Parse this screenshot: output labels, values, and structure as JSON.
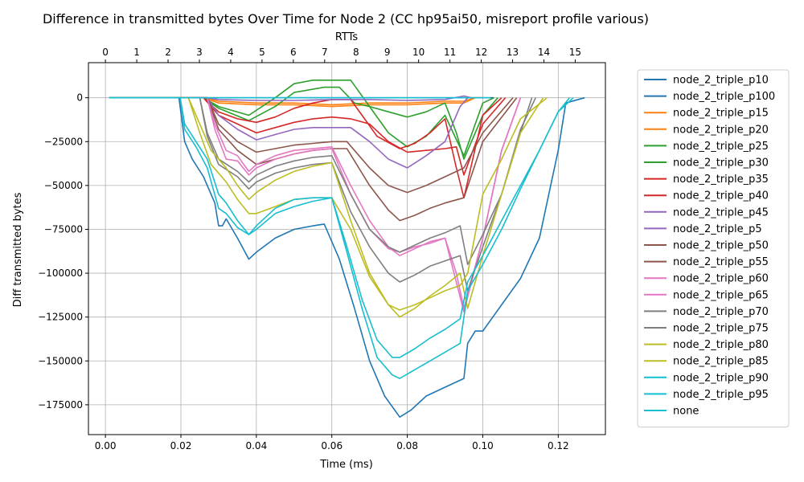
{
  "chart_data": {
    "type": "line",
    "title": "Difference in transmitted bytes Over Time for Node 2 (CC hp95ai50, misreport profile various)",
    "xlabel": "Time (ms)",
    "ylabel": "Diff transmitted bytes",
    "x2label": "RTTs",
    "xlim": [
      -0.0045,
      0.1325
    ],
    "ylim": [
      -192000,
      20000
    ],
    "xticks": [
      0.0,
      0.02,
      0.04,
      0.06,
      0.08,
      0.1,
      0.12
    ],
    "xtick_labels": [
      "0.00",
      "0.02",
      "0.04",
      "0.06",
      "0.08",
      "0.10",
      "0.12"
    ],
    "yticks": [
      0,
      -25000,
      -50000,
      -75000,
      -100000,
      -125000,
      -150000,
      -175000
    ],
    "ytick_labels": [
      "0",
      "−25000",
      "−50000",
      "−75000",
      "−100000",
      "−125000",
      "−150000",
      "−175000"
    ],
    "x2ticks": [
      0,
      1,
      2,
      3,
      4,
      5,
      6,
      7,
      8,
      9,
      10,
      11,
      12,
      13,
      14,
      15
    ],
    "x2tick_labels": [
      "0",
      "1",
      "2",
      "3",
      "4",
      "5",
      "6",
      "7",
      "8",
      "9",
      "10",
      "11",
      "12",
      "13",
      "14",
      "15"
    ],
    "rtt_per_ms": 0.0083,
    "grid": true,
    "legend_position": "outside-right",
    "series": [
      {
        "name": "node_2_triple_p10",
        "color": "#1f77b4",
        "x": [
          0.001,
          0.02,
          0.1,
          0.103
        ],
        "y": [
          0,
          0,
          0,
          0
        ]
      },
      {
        "name": "node_2_triple_p100",
        "color": "#1f77b4",
        "x": [
          0.001,
          0.0195,
          0.021,
          0.023,
          0.026,
          0.029,
          0.03,
          0.031,
          0.032,
          0.035,
          0.038,
          0.04,
          0.045,
          0.05,
          0.055,
          0.058,
          0.062,
          0.066,
          0.07,
          0.074,
          0.078,
          0.081,
          0.085,
          0.09,
          0.095,
          0.096,
          0.098,
          0.1,
          0.105,
          0.11,
          0.115,
          0.12,
          0.122,
          0.127
        ],
        "y": [
          0,
          0,
          -25000,
          -35000,
          -45000,
          -60000,
          -73000,
          -73000,
          -69000,
          -80000,
          -92000,
          -88000,
          -80000,
          -75000,
          -73000,
          -72000,
          -92000,
          -120000,
          -150000,
          -170000,
          -182000,
          -178000,
          -170000,
          -165000,
          -160000,
          -140000,
          -133000,
          -133000,
          -118000,
          -103000,
          -80000,
          -30000,
          -3000,
          0
        ]
      },
      {
        "name": "node_2_triple_p15",
        "color": "#ff7f0e",
        "x": [
          0.001,
          0.026,
          0.03,
          0.04,
          0.05,
          0.06,
          0.07,
          0.08,
          0.09,
          0.095,
          0.098,
          0.1
        ],
        "y": [
          0,
          0,
          -2000,
          -3000,
          -3000,
          -4000,
          -3000,
          -3000,
          -2000,
          -2000,
          0,
          0
        ]
      },
      {
        "name": "node_2_triple_p20",
        "color": "#ff7f0e",
        "x": [
          0.001,
          0.026,
          0.03,
          0.04,
          0.05,
          0.06,
          0.07,
          0.08,
          0.09,
          0.095,
          0.098,
          0.1
        ],
        "y": [
          0,
          0,
          -3000,
          -4000,
          -4000,
          -5000,
          -4000,
          -4000,
          -3000,
          -3000,
          0,
          0
        ]
      },
      {
        "name": "node_2_triple_p25",
        "color": "#2ca02c",
        "x": [
          0.001,
          0.026,
          0.03,
          0.038,
          0.045,
          0.05,
          0.055,
          0.06,
          0.065,
          0.07,
          0.075,
          0.08,
          0.085,
          0.09,
          0.095,
          0.1,
          0.103
        ],
        "y": [
          0,
          0,
          -5000,
          -10000,
          0,
          8000,
          10000,
          10000,
          10000,
          -5000,
          -20000,
          -28000,
          -22000,
          -10000,
          -33000,
          -3000,
          0
        ]
      },
      {
        "name": "node_2_triple_p30",
        "color": "#2ca02c",
        "x": [
          0.001,
          0.026,
          0.03,
          0.038,
          0.045,
          0.05,
          0.058,
          0.062,
          0.066,
          0.07,
          0.075,
          0.08,
          0.085,
          0.09,
          0.093,
          0.095,
          0.1,
          0.104
        ],
        "y": [
          0,
          0,
          -6000,
          -13000,
          -5000,
          3000,
          6000,
          6000,
          -3000,
          -5000,
          -8000,
          -11000,
          -8000,
          -3000,
          -20000,
          -35000,
          -10000,
          0
        ]
      },
      {
        "name": "node_2_triple_p35",
        "color": "#d62728",
        "x": [
          0.001,
          0.026,
          0.03,
          0.035,
          0.04,
          0.045,
          0.05,
          0.055,
          0.06,
          0.065,
          0.068,
          0.072,
          0.078,
          0.082,
          0.086,
          0.09,
          0.093,
          0.095,
          0.1,
          0.105
        ],
        "y": [
          0,
          0,
          -8000,
          -12000,
          -14000,
          -11000,
          -6000,
          -3000,
          -1000,
          -1000,
          -10000,
          -22000,
          -29000,
          -26000,
          -20000,
          -12000,
          -40000,
          -57000,
          -10000,
          0
        ]
      },
      {
        "name": "node_2_triple_p40",
        "color": "#d62728",
        "x": [
          0.001,
          0.026,
          0.03,
          0.035,
          0.04,
          0.045,
          0.05,
          0.055,
          0.06,
          0.065,
          0.07,
          0.075,
          0.08,
          0.085,
          0.09,
          0.093,
          0.095,
          0.1,
          0.106
        ],
        "y": [
          0,
          0,
          -10000,
          -15000,
          -20000,
          -17000,
          -14000,
          -12000,
          -11000,
          -12000,
          -15000,
          -25000,
          -31000,
          -30000,
          -29000,
          -28000,
          -44000,
          -15000,
          0
        ]
      },
      {
        "name": "node_2_triple_p45",
        "color": "#9467bd",
        "x": [
          0.001,
          0.027,
          0.03,
          0.035,
          0.04,
          0.045,
          0.05,
          0.055,
          0.06,
          0.065,
          0.07,
          0.075,
          0.08,
          0.085,
          0.09,
          0.094,
          0.096
        ],
        "y": [
          0,
          0,
          -10000,
          -18000,
          -24000,
          -21000,
          -18000,
          -17000,
          -17000,
          -17000,
          -25000,
          -35000,
          -40000,
          -33000,
          -25000,
          -5000,
          0
        ]
      },
      {
        "name": "node_2_triple_p5",
        "color": "#9467bd",
        "x": [
          0.001,
          0.027,
          0.03,
          0.04,
          0.05,
          0.06,
          0.07,
          0.08,
          0.09,
          0.095,
          0.097
        ],
        "y": [
          0,
          0,
          -1000,
          -1500,
          -1500,
          -1000,
          -1000,
          -1500,
          -1000,
          1000,
          0
        ]
      },
      {
        "name": "node_2_triple_p50",
        "color": "#8c564b",
        "x": [
          0.001,
          0.027,
          0.03,
          0.035,
          0.04,
          0.045,
          0.05,
          0.055,
          0.06,
          0.064,
          0.07,
          0.075,
          0.08,
          0.085,
          0.09,
          0.095,
          0.1,
          0.108
        ],
        "y": [
          0,
          0,
          -15000,
          -25000,
          -31000,
          -29000,
          -27000,
          -26000,
          -25000,
          -25000,
          -40000,
          -50000,
          -54000,
          -50000,
          -45000,
          -40000,
          -20000,
          0
        ]
      },
      {
        "name": "node_2_triple_p55",
        "color": "#8c564b",
        "x": [
          0.001,
          0.027,
          0.03,
          0.035,
          0.04,
          0.045,
          0.05,
          0.055,
          0.06,
          0.064,
          0.07,
          0.075,
          0.078,
          0.082,
          0.086,
          0.09,
          0.095,
          0.1,
          0.109
        ],
        "y": [
          0,
          0,
          -18000,
          -30000,
          -38000,
          -35000,
          -32000,
          -30000,
          -29000,
          -29000,
          -50000,
          -64000,
          -70000,
          -67000,
          -63000,
          -60000,
          -57000,
          -25000,
          0
        ]
      },
      {
        "name": "node_2_triple_p60",
        "color": "#e377c2",
        "x": [
          0.001,
          0.027,
          0.029,
          0.032,
          0.035,
          0.038,
          0.04,
          0.045,
          0.05,
          0.055,
          0.06,
          0.065,
          0.07,
          0.075,
          0.078,
          0.082,
          0.086,
          0.09,
          0.095,
          0.1,
          0.105,
          0.11
        ],
        "y": [
          0,
          0,
          -15000,
          -30000,
          -33000,
          -42000,
          -38000,
          -33000,
          -30000,
          -29000,
          -28000,
          -50000,
          -70000,
          -85000,
          -90000,
          -86000,
          -82000,
          -80000,
          -122000,
          -80000,
          -30000,
          0
        ]
      },
      {
        "name": "node_2_triple_p65",
        "color": "#e377c2",
        "x": [
          0.001,
          0.027,
          0.029,
          0.032,
          0.035,
          0.038,
          0.04,
          0.045,
          0.05,
          0.055,
          0.06,
          0.065,
          0.07,
          0.075,
          0.078,
          0.082,
          0.086,
          0.09,
          0.093,
          0.095,
          0.1,
          0.105,
          0.11
        ],
        "y": [
          0,
          0,
          -18000,
          -35000,
          -36000,
          -44000,
          -40000,
          -35000,
          -32000,
          -30000,
          -29000,
          -55000,
          -75000,
          -86000,
          -88000,
          -85000,
          -83000,
          -80000,
          -100000,
          -120000,
          -80000,
          -30000,
          0
        ]
      },
      {
        "name": "node_2_triple_p70",
        "color": "#7f7f7f",
        "x": [
          0.001,
          0.025,
          0.027,
          0.03,
          0.035,
          0.038,
          0.04,
          0.045,
          0.05,
          0.055,
          0.06,
          0.065,
          0.07,
          0.075,
          0.078,
          0.082,
          0.086,
          0.09,
          0.094,
          0.096,
          0.1,
          0.105,
          0.11,
          0.113
        ],
        "y": [
          0,
          0,
          -20000,
          -35000,
          -42000,
          -48000,
          -44000,
          -39000,
          -36000,
          -34000,
          -33000,
          -55000,
          -75000,
          -85000,
          -88000,
          -84000,
          -80000,
          -77000,
          -73000,
          -95000,
          -78000,
          -55000,
          -20000,
          0
        ]
      },
      {
        "name": "node_2_triple_p75",
        "color": "#7f7f7f",
        "x": [
          0.001,
          0.025,
          0.027,
          0.03,
          0.035,
          0.038,
          0.04,
          0.045,
          0.05,
          0.055,
          0.06,
          0.065,
          0.07,
          0.075,
          0.078,
          0.082,
          0.086,
          0.09,
          0.094,
          0.096,
          0.1,
          0.105,
          0.11,
          0.114
        ],
        "y": [
          0,
          0,
          -22000,
          -38000,
          -45000,
          -52000,
          -48000,
          -43000,
          -40000,
          -38000,
          -37000,
          -65000,
          -85000,
          -100000,
          -105000,
          -101000,
          -96000,
          -93000,
          -90000,
          -110000,
          -85000,
          -55000,
          -18000,
          0
        ]
      },
      {
        "name": "node_2_triple_p80",
        "color": "#bcbd22",
        "x": [
          0.001,
          0.022,
          0.025,
          0.028,
          0.032,
          0.035,
          0.038,
          0.04,
          0.045,
          0.05,
          0.055,
          0.06,
          0.065,
          0.07,
          0.075,
          0.078,
          0.082,
          0.086,
          0.09,
          0.094,
          0.096,
          0.1,
          0.105,
          0.11,
          0.116
        ],
        "y": [
          0,
          0,
          -15000,
          -30000,
          -40000,
          -50000,
          -58000,
          -54000,
          -47000,
          -42000,
          -39000,
          -37000,
          -70000,
          -100000,
          -118000,
          -125000,
          -120000,
          -113000,
          -107000,
          -100000,
          -120000,
          -90000,
          -55000,
          -20000,
          0
        ]
      },
      {
        "name": "node_2_triple_p85",
        "color": "#bcbd22",
        "x": [
          0.001,
          0.022,
          0.025,
          0.028,
          0.032,
          0.035,
          0.038,
          0.04,
          0.045,
          0.05,
          0.055,
          0.06,
          0.065,
          0.07,
          0.075,
          0.078,
          0.082,
          0.086,
          0.09,
          0.094,
          0.096,
          0.1,
          0.105,
          0.11,
          0.117
        ],
        "y": [
          0,
          0,
          -20000,
          -38000,
          -48000,
          -58000,
          -66000,
          -66000,
          -62000,
          -58000,
          -57000,
          -57000,
          -75000,
          -102000,
          -118000,
          -121000,
          -118000,
          -114000,
          -110000,
          -107000,
          -100000,
          -55000,
          -35000,
          -12000,
          0
        ]
      },
      {
        "name": "node_2_triple_p90",
        "color": "#17becf",
        "x": [
          0.001,
          0.0198,
          0.021,
          0.024,
          0.027,
          0.03,
          0.032,
          0.035,
          0.038,
          0.04,
          0.045,
          0.05,
          0.055,
          0.06,
          0.064,
          0.068,
          0.072,
          0.076,
          0.078,
          0.082,
          0.086,
          0.09,
          0.094,
          0.096,
          0.1,
          0.105,
          0.11,
          0.115,
          0.12,
          0.123
        ],
        "y": [
          0,
          0,
          -15000,
          -25000,
          -35000,
          -55000,
          -60000,
          -70000,
          -78000,
          -73000,
          -63000,
          -58000,
          -57000,
          -57000,
          -85000,
          -115000,
          -138000,
          -148000,
          -148000,
          -143000,
          -137000,
          -132000,
          -126000,
          -105000,
          -90000,
          -70000,
          -50000,
          -30000,
          -8000,
          0
        ]
      },
      {
        "name": "node_2_triple_p95",
        "color": "#17becf",
        "x": [
          0.001,
          0.0198,
          0.021,
          0.024,
          0.027,
          0.03,
          0.032,
          0.035,
          0.038,
          0.04,
          0.045,
          0.05,
          0.055,
          0.06,
          0.064,
          0.068,
          0.072,
          0.076,
          0.078,
          0.082,
          0.086,
          0.09,
          0.094,
          0.096,
          0.1,
          0.105,
          0.11,
          0.115,
          0.12,
          0.124
        ],
        "y": [
          0,
          0,
          -18000,
          -28000,
          -40000,
          -63000,
          -66000,
          -74000,
          -78000,
          -75000,
          -66000,
          -62000,
          -59000,
          -57000,
          -88000,
          -120000,
          -148000,
          -158000,
          -160000,
          -155000,
          -150000,
          -145000,
          -140000,
          -110000,
          -95000,
          -75000,
          -52000,
          -30000,
          -8000,
          0
        ]
      },
      {
        "name": "none",
        "color": "#17becf",
        "x": [
          0.001,
          0.02,
          0.1,
          0.102
        ],
        "y": [
          0,
          0,
          0,
          0
        ]
      }
    ]
  }
}
